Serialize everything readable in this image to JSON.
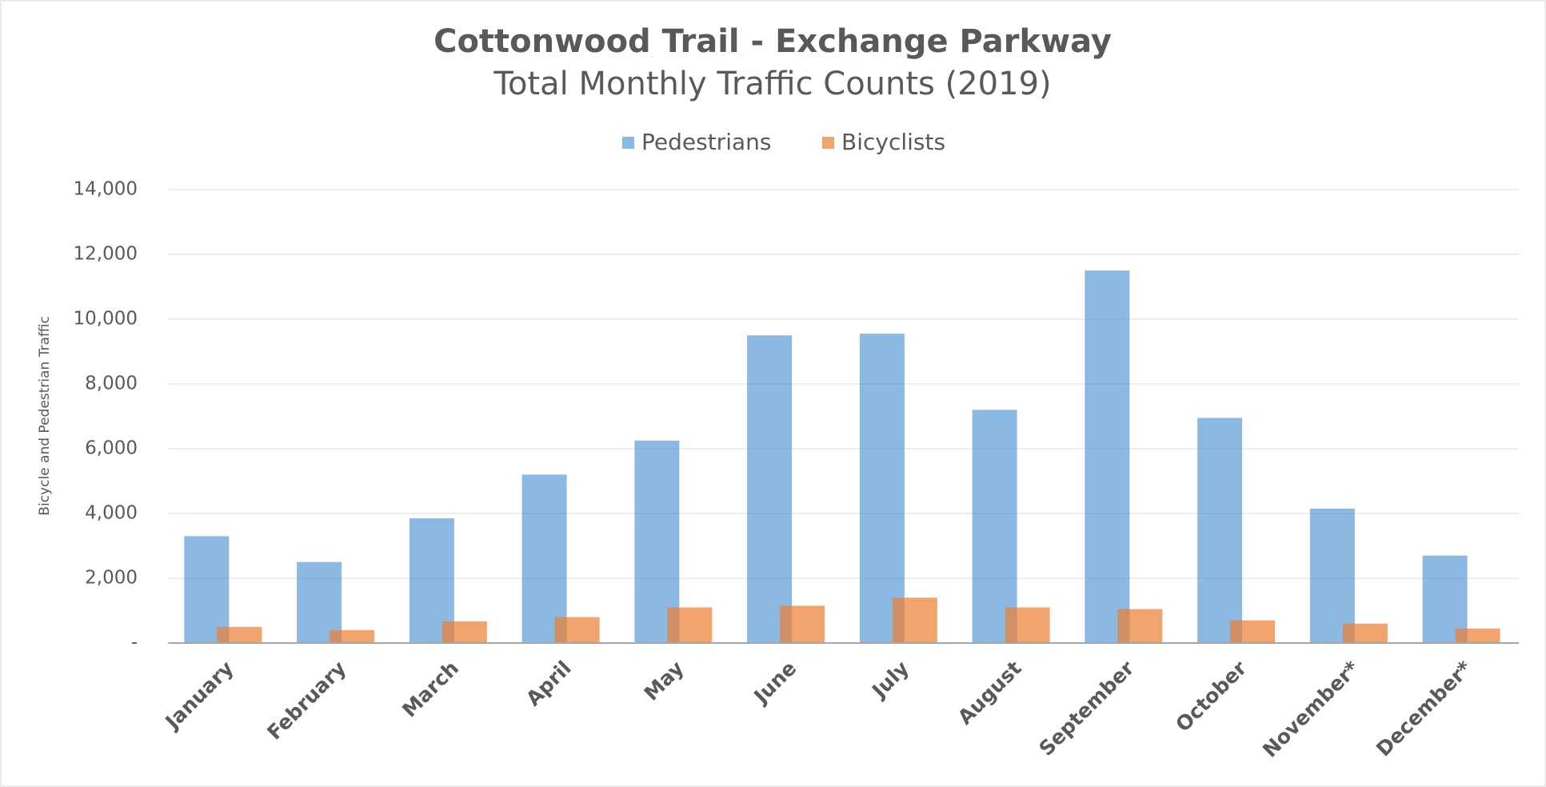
{
  "chart_data": {
    "type": "bar",
    "title": "Cottonwood Trail - Exchange Parkway",
    "subtitle": "Total Monthly Traffic Counts (2019)",
    "y_label": "Bicycle and Pedestrian Traffic",
    "categories": [
      "January",
      "February",
      "March",
      "April",
      "May",
      "June",
      "July",
      "August",
      "September",
      "October",
      "November*",
      "December*"
    ],
    "series": [
      {
        "name": "Pedestrians",
        "color": "#5b9bd5",
        "values": [
          3300,
          2500,
          3850,
          5200,
          6250,
          9500,
          9550,
          7200,
          11500,
          6950,
          4150,
          2700
        ]
      },
      {
        "name": "Bicyclists",
        "color": "#ed7d31",
        "values": [
          500,
          400,
          670,
          800,
          1100,
          1150,
          1400,
          1100,
          1050,
          700,
          600,
          450
        ]
      }
    ],
    "ylim": [
      0,
      14000
    ],
    "yticks": [
      {
        "value": 0,
        "label": "-"
      },
      {
        "value": 2000,
        "label": "2,000"
      },
      {
        "value": 4000,
        "label": "4,000"
      },
      {
        "value": 6000,
        "label": "6,000"
      },
      {
        "value": 8000,
        "label": "8,000"
      },
      {
        "value": 10000,
        "label": "10,000"
      },
      {
        "value": 12000,
        "label": "12,000"
      },
      {
        "value": 14000,
        "label": "14,000"
      }
    ],
    "grid": true,
    "legend": "top"
  }
}
